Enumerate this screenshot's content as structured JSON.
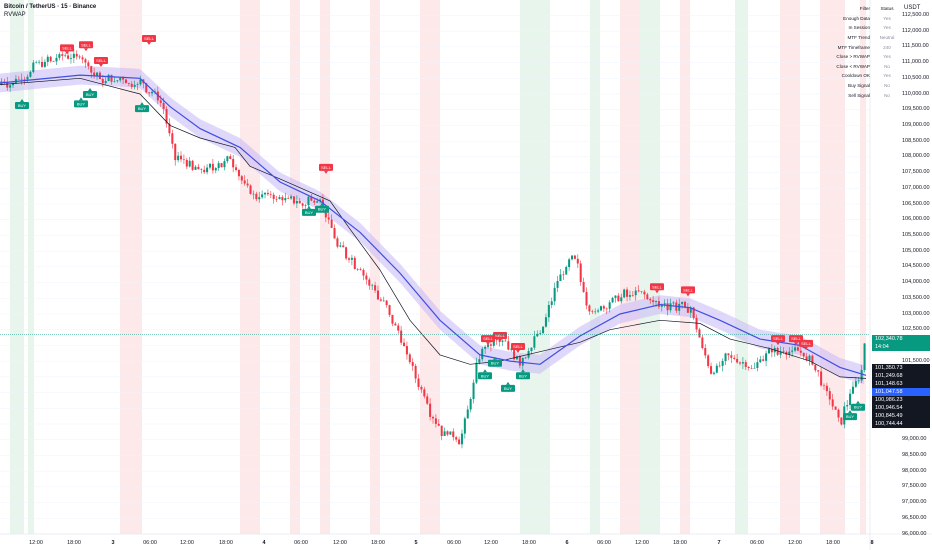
{
  "header": {
    "symbol": "Bitcoin / TetherUS · 15 · Binance",
    "indicator": "RVWAP"
  },
  "price_axis": {
    "unit": "USDT",
    "labels": [
      "112,500.00",
      "112,000.00",
      "111,500.00",
      "111,000.00",
      "110,500.00",
      "110,000.00",
      "109,500.00",
      "109,000.00",
      "108,500.00",
      "108,000.00",
      "107,500.00",
      "107,000.00",
      "106,500.00",
      "106,000.00",
      "105,500.00",
      "105,000.00",
      "104,500.00",
      "104,000.00",
      "103,500.00",
      "103,000.00",
      "102,500.00",
      "102,000.00",
      "101,500.00",
      "101,000.00",
      "100,500.00",
      "100,000.00",
      "99,500.00",
      "99,000.00",
      "98,500.00",
      "98,000.00",
      "97,500.00",
      "97,000.00",
      "96,500.00",
      "96,000.00"
    ],
    "tags": [
      {
        "value": "102,340.78",
        "color": "#089981"
      },
      {
        "value": "14:04",
        "color": "#089981"
      },
      {
        "value": "101,350.73",
        "color": "#131722"
      },
      {
        "value": "101,249.68",
        "color": "#131722"
      },
      {
        "value": "101,148.63",
        "color": "#131722"
      },
      {
        "value": "101,047.58",
        "color": "#2962ff"
      },
      {
        "value": "100,986.23",
        "color": "#131722"
      },
      {
        "value": "100,946.54",
        "color": "#131722"
      },
      {
        "value": "100,845.49",
        "color": "#131722"
      },
      {
        "value": "100,744.44",
        "color": "#131722"
      }
    ]
  },
  "time_axis": {
    "labels": [
      "12:00",
      "18:00",
      "3",
      "06:00",
      "12:00",
      "18:00",
      "4",
      "06:00",
      "12:00",
      "18:00",
      "5",
      "06:00",
      "12:00",
      "18:00",
      "6",
      "06:00",
      "12:00",
      "18:00",
      "7",
      "06:00",
      "12:00",
      "18:00",
      "8"
    ]
  },
  "filter_table": {
    "columns": [
      "Filter",
      "Status"
    ],
    "rows": [
      {
        "filter": "Enough Data",
        "status": "Yes"
      },
      {
        "filter": "In Session",
        "status": "Yes"
      },
      {
        "filter": "MTF Trend",
        "status": "Neutral"
      },
      {
        "filter": "MTF Timeframe",
        "status": "240"
      },
      {
        "filter": "Close > RVWAP",
        "status": "Yes"
      },
      {
        "filter": "Close < RVWAP",
        "status": "No"
      },
      {
        "filter": "Cooldown OK",
        "status": "Yes"
      },
      {
        "filter": "Buy Signal",
        "status": "No"
      },
      {
        "filter": "Sell Signal",
        "status": "No"
      }
    ]
  },
  "signals": {
    "buy_label": "BUY",
    "sell_label": "SELL"
  },
  "colors": {
    "up": "#089981",
    "down": "#f23645",
    "rvwap": "#3f4fe0",
    "band": "#c6b8f5",
    "vwap": "#131722",
    "bg_green": "#e8f5ec",
    "bg_red": "#fde8ea",
    "last_price": "#089981",
    "current_tag": "#2962ff"
  },
  "chart_data": {
    "type": "candlestick",
    "price_range": [
      96000,
      112800
    ],
    "bias": [
      2,
      2,
      0,
      0,
      0,
      2,
      1,
      1,
      0,
      0,
      0,
      2,
      2,
      1,
      0,
      0,
      2,
      0,
      0,
      1,
      1,
      1,
      1,
      0,
      0,
      0,
      0,
      2,
      2,
      1,
      2,
      0,
      0,
      2,
      0,
      0,
      0,
      2,
      1,
      0,
      1,
      2,
      2,
      1,
      0,
      0,
      1,
      0,
      2,
      2,
      0,
      0,
      1,
      1,
      0,
      0,
      2,
      1,
      1,
      1,
      0,
      2,
      1,
      2,
      1,
      2,
      0,
      2,
      1,
      2,
      1,
      1,
      2,
      0,
      1,
      2,
      0,
      1,
      2,
      2,
      1,
      2,
      1,
      1,
      1,
      2,
      2,
      1,
      0,
      1,
      1,
      2,
      1,
      2,
      1,
      0,
      1,
      1,
      1,
      1,
      2,
      1,
      2,
      1,
      0,
      0,
      2,
      0,
      0,
      0,
      0,
      0,
      0,
      1,
      2,
      2,
      0,
      1,
      2,
      0,
      1,
      2,
      0,
      1,
      2,
      1,
      1,
      0,
      2,
      2,
      0,
      1,
      2,
      2,
      0,
      0,
      1,
      2,
      1,
      1,
      0,
      1,
      1,
      0,
      0,
      1,
      2,
      2,
      0,
      1,
      1,
      2,
      0,
      1,
      2,
      2,
      2,
      2,
      1,
      1,
      1,
      0,
      0,
      0,
      2,
      0,
      1,
      2,
      1,
      1,
      2,
      1,
      0,
      1,
      2,
      0,
      2,
      0,
      2,
      0,
      1,
      0,
      1,
      0,
      2,
      2,
      0,
      0,
      0,
      1,
      0,
      1,
      1,
      0,
      0,
      0,
      2,
      2,
      0,
      2,
      0,
      1,
      0,
      2,
      2,
      0,
      0,
      2,
      0,
      0,
      1,
      1,
      1,
      0,
      0,
      2,
      0,
      0,
      1,
      1,
      1,
      1,
      1,
      0,
      1,
      0,
      1,
      0,
      1,
      2,
      0,
      2,
      2,
      0,
      2,
      2,
      0,
      0,
      2,
      1,
      1,
      1,
      0,
      1,
      1,
      0,
      0,
      0,
      0,
      0,
      2,
      1,
      0,
      1,
      1,
      1,
      2,
      2,
      2,
      1,
      0,
      1,
      2,
      0,
      1,
      2,
      2,
      2,
      0,
      1,
      1,
      0,
      0,
      0,
      2,
      2,
      2,
      2,
      0,
      2,
      2,
      1,
      2,
      0,
      0,
      0,
      0,
      0,
      1,
      1,
      0,
      2,
      0,
      1,
      1,
      2,
      2,
      0,
      2
    ],
    "close_path": [
      [
        0,
        110300
      ],
      [
        18,
        110450
      ],
      [
        40,
        111000
      ],
      [
        60,
        111200
      ],
      [
        75,
        111300
      ],
      [
        100,
        110500
      ],
      [
        140,
        110350
      ],
      [
        160,
        109900
      ],
      [
        175,
        108000
      ],
      [
        200,
        107500
      ],
      [
        230,
        107900
      ],
      [
        250,
        106800
      ],
      [
        280,
        106700
      ],
      [
        300,
        106500
      ],
      [
        320,
        106800
      ],
      [
        335,
        105300
      ],
      [
        360,
        104400
      ],
      [
        390,
        103000
      ],
      [
        410,
        101500
      ],
      [
        430,
        99900
      ],
      [
        440,
        99300
      ],
      [
        460,
        98900
      ],
      [
        480,
        101800
      ],
      [
        500,
        102200
      ],
      [
        520,
        101500
      ],
      [
        540,
        102400
      ],
      [
        560,
        104300
      ],
      [
        575,
        104800
      ],
      [
        590,
        103000
      ],
      [
        620,
        103600
      ],
      [
        640,
        103700
      ],
      [
        660,
        103300
      ],
      [
        690,
        103200
      ],
      [
        710,
        101200
      ],
      [
        730,
        101700
      ],
      [
        750,
        101200
      ],
      [
        765,
        101700
      ],
      [
        790,
        101900
      ],
      [
        810,
        101500
      ],
      [
        830,
        100400
      ],
      [
        840,
        99500
      ],
      [
        850,
        100500
      ],
      [
        860,
        100900
      ],
      [
        866,
        102340
      ]
    ],
    "rvwap_path": [
      [
        0,
        110350
      ],
      [
        80,
        110600
      ],
      [
        140,
        110500
      ],
      [
        170,
        109600
      ],
      [
        200,
        108900
      ],
      [
        240,
        108300
      ],
      [
        280,
        107200
      ],
      [
        320,
        106600
      ],
      [
        360,
        105600
      ],
      [
        400,
        104300
      ],
      [
        440,
        102800
      ],
      [
        480,
        101700
      ],
      [
        510,
        101500
      ],
      [
        540,
        101400
      ],
      [
        580,
        102300
      ],
      [
        620,
        103000
      ],
      [
        660,
        103300
      ],
      [
        690,
        103200
      ],
      [
        720,
        102800
      ],
      [
        760,
        102200
      ],
      [
        800,
        102000
      ],
      [
        840,
        101300
      ],
      [
        866,
        101050
      ]
    ],
    "vwap_path": [
      [
        0,
        110300
      ],
      [
        80,
        110500
      ],
      [
        140,
        110000
      ],
      [
        170,
        109000
      ],
      [
        200,
        108600
      ],
      [
        235,
        108300
      ],
      [
        250,
        107700
      ],
      [
        280,
        107300
      ],
      [
        330,
        106600
      ],
      [
        350,
        105700
      ],
      [
        380,
        104400
      ],
      [
        410,
        102800
      ],
      [
        440,
        101700
      ],
      [
        470,
        101400
      ],
      [
        500,
        101500
      ],
      [
        540,
        101800
      ],
      [
        580,
        102100
      ],
      [
        610,
        102500
      ],
      [
        660,
        102800
      ],
      [
        700,
        102700
      ],
      [
        730,
        102200
      ],
      [
        770,
        101900
      ],
      [
        810,
        101500
      ],
      [
        840,
        101000
      ],
      [
        866,
        100950
      ]
    ],
    "volatility_band": 300,
    "last_price": 102340.78,
    "buy_signals": [
      [
        22,
        110000
      ],
      [
        81,
        110050
      ],
      [
        90,
        110350
      ],
      [
        142,
        109900
      ],
      [
        309,
        106600
      ],
      [
        322,
        106700
      ],
      [
        485,
        101400
      ],
      [
        495,
        101800
      ],
      [
        508,
        101000
      ],
      [
        523,
        101400
      ],
      [
        850,
        100100
      ],
      [
        858,
        100400
      ]
    ],
    "sell_signals": [
      [
        67,
        111100
      ],
      [
        86,
        111200
      ],
      [
        101,
        110700
      ],
      [
        149,
        111400
      ],
      [
        326,
        107300
      ],
      [
        488,
        101850
      ],
      [
        500,
        101950
      ],
      [
        518,
        101600
      ],
      [
        657,
        103500
      ],
      [
        688,
        103400
      ],
      [
        778,
        101850
      ],
      [
        796,
        101850
      ],
      [
        806,
        101700
      ]
    ],
    "bg_green": [
      [
        10,
        24
      ],
      [
        28,
        34
      ],
      [
        520,
        550
      ],
      [
        590,
        600
      ],
      [
        640,
        660
      ],
      [
        735,
        748
      ]
    ],
    "bg_red": [
      [
        120,
        142
      ],
      [
        240,
        260
      ],
      [
        290,
        300
      ],
      [
        320,
        330
      ],
      [
        370,
        380
      ],
      [
        420,
        440
      ],
      [
        620,
        640
      ],
      [
        680,
        690
      ],
      [
        780,
        800
      ],
      [
        820,
        845
      ],
      [
        860,
        866
      ]
    ]
  }
}
